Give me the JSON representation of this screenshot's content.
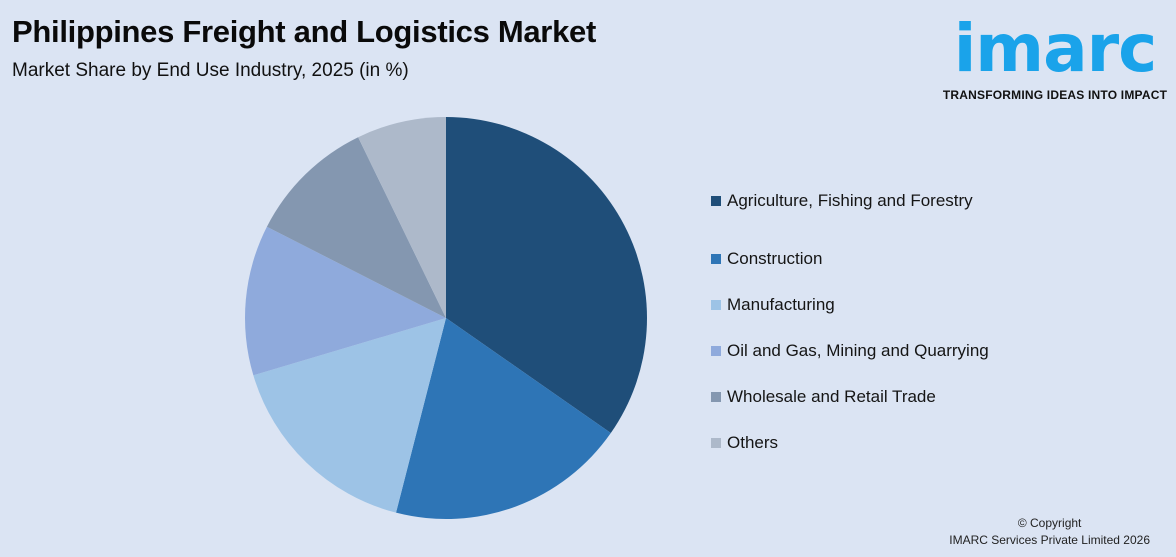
{
  "header": {
    "title": "Philippines Freight and Logistics Market",
    "subtitle": "Market Share by End Use Industry, 2025 (in %)"
  },
  "logo": {
    "wordmark": "imarc",
    "tagline": "TRANSFORMING IDEAS INTO IMPACT",
    "color": "#1aa3ea"
  },
  "footer": {
    "copyright_line1": "© Copyright",
    "copyright_line2": "IMARC Services Private Limited 2026"
  },
  "legend": {
    "items": [
      {
        "label": "Agriculture, Fishing and Forestry",
        "color": "#1f4e79"
      },
      {
        "label": "Construction",
        "color": "#2e75b6"
      },
      {
        "label": "Manufacturing",
        "color": "#9dc3e6"
      },
      {
        "label": "Oil and Gas, Mining and Quarrying",
        "color": "#8faadc"
      },
      {
        "label": "Wholesale and Retail Trade",
        "color": "#8497b0"
      },
      {
        "label": "Others",
        "color": "#adb9ca"
      }
    ]
  },
  "chart_data": {
    "type": "pie",
    "title": "Philippines Freight and Logistics Market",
    "subtitle": "Market Share by End Use Industry, 2025 (in %)",
    "categories": [
      "Agriculture, Fishing and Forestry",
      "Construction",
      "Manufacturing",
      "Oil and Gas, Mining and Quarrying",
      "Wholesale and Retail Trade",
      "Others"
    ],
    "values": [
      34.7,
      19.3,
      16.4,
      12.1,
      10.3,
      7.2
    ],
    "colors": [
      "#1f4e79",
      "#2e75b6",
      "#9dc3e6",
      "#8faadc",
      "#8497b0",
      "#adb9ca"
    ],
    "start_angle": "12 o'clock, clockwise",
    "legend_position": "right",
    "data_labels": false
  }
}
